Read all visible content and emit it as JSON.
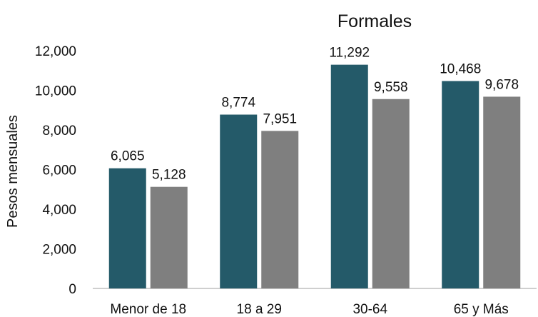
{
  "chart_data": {
    "type": "bar",
    "title": "Formales",
    "ylabel": "Pesos mensuales",
    "xlabel": "",
    "categories": [
      "Menor de 18",
      "18 a 29",
      "30-64",
      "65 y Más"
    ],
    "series": [
      {
        "values": [
          6065,
          8774,
          11292,
          10468
        ],
        "color": "#245a69"
      },
      {
        "values": [
          5128,
          7951,
          9558,
          9678
        ],
        "color": "#7f7f7f"
      }
    ],
    "data_labels": [
      [
        "6,065",
        "8,774",
        "11,292",
        "10,468"
      ],
      [
        "5,128",
        "7,951",
        "9,558",
        "9,678"
      ]
    ],
    "ylim": [
      0,
      12000
    ],
    "yticks": [
      0,
      2000,
      4000,
      6000,
      8000,
      10000,
      12000
    ],
    "ytick_labels": [
      "0",
      "2,000",
      "4,000",
      "6,000",
      "8,000",
      "10,000",
      "12,000"
    ],
    "grid": false,
    "legend": "none"
  }
}
